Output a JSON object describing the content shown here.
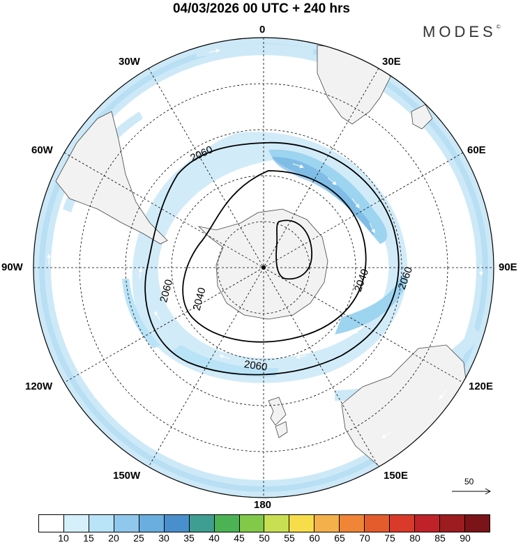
{
  "header": {
    "title": "04/03/2026  00 UTC  + 240 hrs",
    "brand": "MODES",
    "brand_mark": "©"
  },
  "map": {
    "projection": "south-polar-stereographic",
    "longitude_labels": {
      "top": "0",
      "upper_left": "30W",
      "upper_right": "30E",
      "left_upper": "60W",
      "right_upper": "60E",
      "left": "90W",
      "right": "90E",
      "left_lower": "120W",
      "right_lower": "120E",
      "lower_left": "150W",
      "lower_right": "150E",
      "bottom": "180"
    },
    "contour_labels": [
      "2060",
      "2060",
      "2040",
      "2040",
      "2060",
      "2060"
    ],
    "reference_vector": {
      "label": "50"
    },
    "colors": {
      "wind_light": "#cde9f7",
      "wind_mid": "#9dd4f0",
      "wind_strong": "#6baee0",
      "land": "#f2f2f2",
      "coast": "#444444"
    }
  },
  "colorbar": {
    "labels": [
      "10",
      "15",
      "20",
      "25",
      "30",
      "35",
      "40",
      "45",
      "50",
      "55",
      "60",
      "65",
      "70",
      "75",
      "80",
      "85",
      "90"
    ],
    "colors": [
      "#ffffff",
      "#d6f0fb",
      "#b9e3f7",
      "#8fc8ec",
      "#6aaedf",
      "#4a8fcd",
      "#3e9e92",
      "#4cb355",
      "#82c94a",
      "#c9df52",
      "#f7dd4a",
      "#f4b04a",
      "#f08437",
      "#e45c2c",
      "#d93a2a",
      "#bf2329",
      "#9c1c20",
      "#7a1418"
    ]
  }
}
